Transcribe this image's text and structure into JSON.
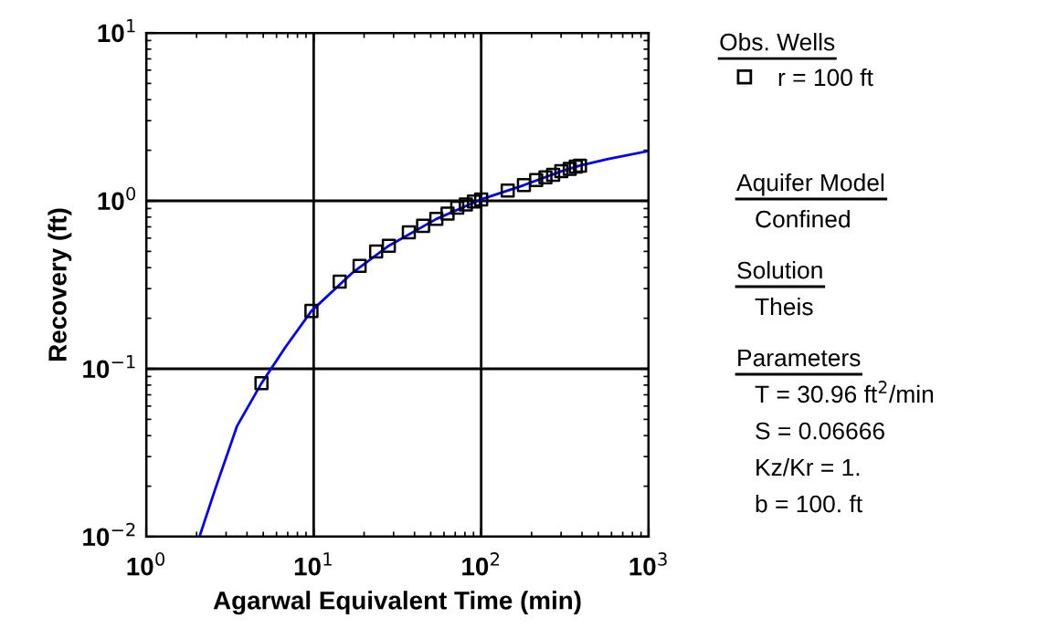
{
  "chart_data": {
    "type": "scatter",
    "xlabel": "Agarwal Equivalent Time (min)",
    "ylabel": "Recovery (ft)",
    "log": "xy",
    "grid": true,
    "legend": "right",
    "legend_title": "Obs. Wells",
    "marker": "square",
    "xlim": [
      1,
      1000
    ],
    "ylim": [
      0.01,
      10
    ],
    "xticks": [
      {
        "value": 1,
        "label": "10$^{0}$"
      },
      {
        "value": 10,
        "label": "10$^{1}$"
      },
      {
        "value": 100,
        "label": "10$^{2}$"
      },
      {
        "value": 1000,
        "label": "10$^{3}$"
      }
    ],
    "yticks": [
      {
        "value": 0.01,
        "label": "10$^{−2}$"
      },
      {
        "value": 0.1,
        "label": "10$^{−1}$"
      },
      {
        "value": 1,
        "label": "10$^{0}$"
      },
      {
        "value": 10,
        "label": "10$^{1}$"
      }
    ],
    "series": [
      {
        "name": "r = 100 ft",
        "color": "#000000",
        "x": [
          4.88,
          9.7,
          14.3,
          18.8,
          23.6,
          28.1,
          37,
          45,
          54,
          63,
          72,
          81,
          90.5,
          100,
          144,
          180,
          213,
          242,
          269,
          301,
          338,
          367,
          389
        ],
        "values": [
          0.082,
          0.221,
          0.33,
          0.41,
          0.5,
          0.54,
          0.65,
          0.71,
          0.78,
          0.84,
          0.91,
          0.95,
          0.99,
          1.02,
          1.15,
          1.24,
          1.33,
          1.38,
          1.43,
          1.5,
          1.55,
          1.6,
          1.62
        ]
      },
      {
        "type": "line",
        "color": "#0000ff",
        "marker": "none",
        "x": [
          2.08,
          2.61,
          3.49,
          4.88,
          6.8,
          9.7,
          17.1,
          28.1,
          54,
          100,
          180,
          301,
          389,
          566,
          1000
        ],
        "values": [
          0.01,
          0.0198,
          0.0457,
          0.082,
          0.135,
          0.221,
          0.374,
          0.54,
          0.78,
          1.02,
          1.24,
          1.5,
          1.62,
          1.77,
          1.98
        ]
      }
    ],
    "annotations": [
      "Aquifer Model",
      "Confined",
      "Solution",
      "Theis",
      "Parameters",
      "T = 30.96 ft$^{2}$/min",
      "S = 0.06666",
      "Kz/Kr = 1.",
      "b = 100. ft"
    ]
  }
}
